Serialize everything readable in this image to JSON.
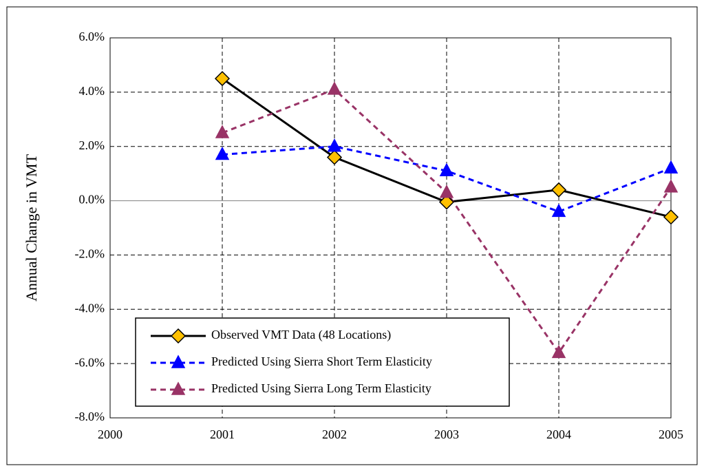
{
  "chart_data": {
    "type": "line",
    "y_label": "Annual Change in VMT",
    "x": [
      2001,
      2002,
      2003,
      2004,
      2005
    ],
    "series": [
      {
        "name": "Observed VMT Data (48 Locations)",
        "color": "#000000",
        "marker_color": "#ffc000",
        "marker": "diamond",
        "line_style": "solid",
        "values": [
          4.5,
          1.6,
          -0.05,
          0.4,
          -0.6
        ]
      },
      {
        "name": "Predicted Using Sierra Short Term Elasticity",
        "color": "#0000ff",
        "marker_color": "#0000ff",
        "marker": "triangle",
        "line_style": "dashed",
        "values": [
          1.7,
          2.0,
          1.1,
          -0.4,
          1.2
        ]
      },
      {
        "name": "Predicted Using Sierra Long Term Elasticity",
        "color": "#993366",
        "marker_color": "#993366",
        "marker": "triangle",
        "line_style": "dashed",
        "values": [
          2.5,
          4.1,
          0.3,
          -5.6,
          0.5
        ]
      }
    ],
    "xlim": [
      2000,
      2005
    ],
    "xticks": [
      2000,
      2001,
      2002,
      2003,
      2004,
      2005
    ],
    "ylim": [
      -8,
      6
    ],
    "yticks": [
      {
        "value": -8,
        "label": "-8.0%"
      },
      {
        "value": -6,
        "label": "-6.0%"
      },
      {
        "value": -4,
        "label": "-4.0%"
      },
      {
        "value": -2,
        "label": "-2.0%"
      },
      {
        "value": 0,
        "label": "0.0%"
      },
      {
        "value": 2,
        "label": "2.0%"
      },
      {
        "value": 4,
        "label": "4.0%"
      },
      {
        "value": 6,
        "label": "6.0%"
      }
    ],
    "grid": true,
    "legend": "lower left"
  }
}
